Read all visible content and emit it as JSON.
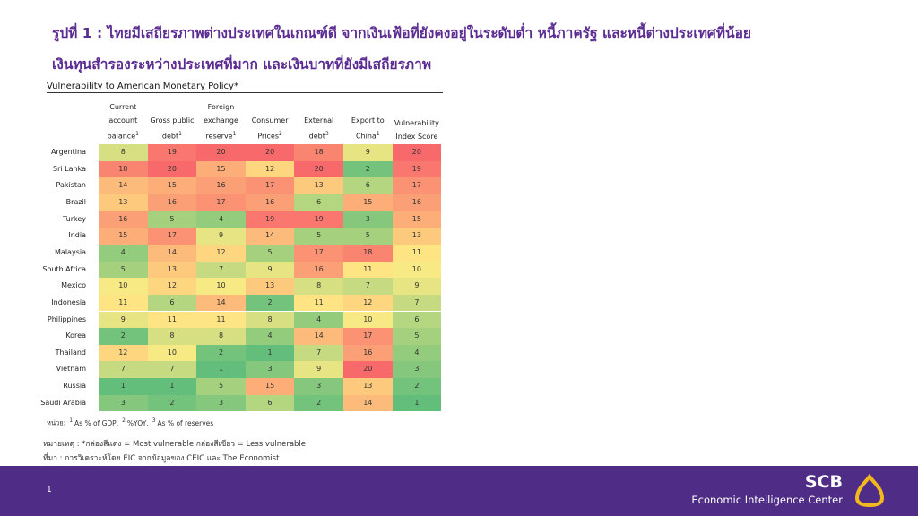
{
  "header": {
    "title_lines": [
      "รูปที่ 1 : ไทยมีเสถียรภาพต่างประเทศในเกณฑ์ดี จากเงินเฟ้อที่ยังคงอยู่ในระดับต่ำ หนี้ภาครัฐ และหนี้ต่างประเทศที่น้อย",
      "เงินทุนสำรองระหว่างประเทศที่มาก และเงินบาทที่ยังมีเสถียรภาพ"
    ]
  },
  "table": {
    "title": "Vulnerability to American Monetary Policy*",
    "columns": [
      {
        "text": "Current account balance",
        "sup": "1"
      },
      {
        "text": "Gross public debt",
        "sup": "1"
      },
      {
        "text": "Foreign exchange reserve",
        "sup": "1"
      },
      {
        "text": "Consumer Prices",
        "sup": "2"
      },
      {
        "text": "External debt",
        "sup": "3"
      },
      {
        "text": "Export to China",
        "sup": "1"
      },
      {
        "text": "Vulnerability Index Score"
      }
    ],
    "rows": [
      {
        "name": "Argentina",
        "values": [
          8,
          19,
          20,
          20,
          18,
          9,
          20
        ]
      },
      {
        "name": "Sri Lanka",
        "values": [
          18,
          20,
          15,
          12,
          20,
          2,
          19
        ]
      },
      {
        "name": "Pakistan",
        "values": [
          14,
          15,
          16,
          17,
          13,
          6,
          17
        ]
      },
      {
        "name": "Brazil",
        "values": [
          13,
          16,
          17,
          16,
          6,
          15,
          16
        ]
      },
      {
        "name": "Turkey",
        "values": [
          16,
          5,
          4,
          19,
          19,
          3,
          15
        ]
      },
      {
        "name": "India",
        "values": [
          15,
          17,
          9,
          14,
          5,
          5,
          13
        ]
      },
      {
        "name": "Malaysia",
        "values": [
          4,
          14,
          12,
          5,
          17,
          18,
          11
        ]
      },
      {
        "name": "South Africa",
        "values": [
          5,
          13,
          7,
          9,
          16,
          11,
          10
        ]
      },
      {
        "name": "Mexico",
        "values": [
          10,
          12,
          10,
          13,
          8,
          7,
          9
        ]
      },
      {
        "name": "Indonesia",
        "values": [
          11,
          6,
          14,
          2,
          11,
          12,
          7
        ]
      },
      {
        "name": "Philippines",
        "values": [
          9,
          11,
          11,
          8,
          4,
          10,
          6
        ]
      },
      {
        "name": "Korea",
        "values": [
          2,
          8,
          8,
          4,
          14,
          17,
          5
        ]
      },
      {
        "name": "Thailand",
        "values": [
          12,
          10,
          2,
          1,
          7,
          16,
          4
        ]
      },
      {
        "name": "Vietnam",
        "values": [
          7,
          7,
          1,
          3,
          9,
          20,
          3
        ]
      },
      {
        "name": "Russia",
        "values": [
          1,
          1,
          5,
          15,
          3,
          13,
          2
        ]
      },
      {
        "name": "Saudi Arabia",
        "values": [
          3,
          2,
          3,
          6,
          2,
          14,
          1
        ]
      }
    ],
    "color_scale": {
      "low": "#63be7b",
      "mid": "#ffeb84",
      "high": "#f8696b"
    }
  },
  "notes": {
    "units_label": "หน่วย:",
    "units": [
      {
        "sup": "1",
        "text": "As % of GDP,"
      },
      {
        "sup": "2",
        "text": "%YOY,"
      },
      {
        "sup": "3",
        "text": "As % of reserves"
      }
    ],
    "remark": "หมายเหตุ : *กล่องสีแดง = Most vulnerable กล่องสีเขียว = Less vulnerable",
    "source": "ที่มา : การวิเคราะห์โดย EIC จากข้อมูลของ CEIC และ The Economist"
  },
  "footer": {
    "page": "1",
    "brand": "SCB",
    "unit": "Economic Intelligence Center"
  }
}
